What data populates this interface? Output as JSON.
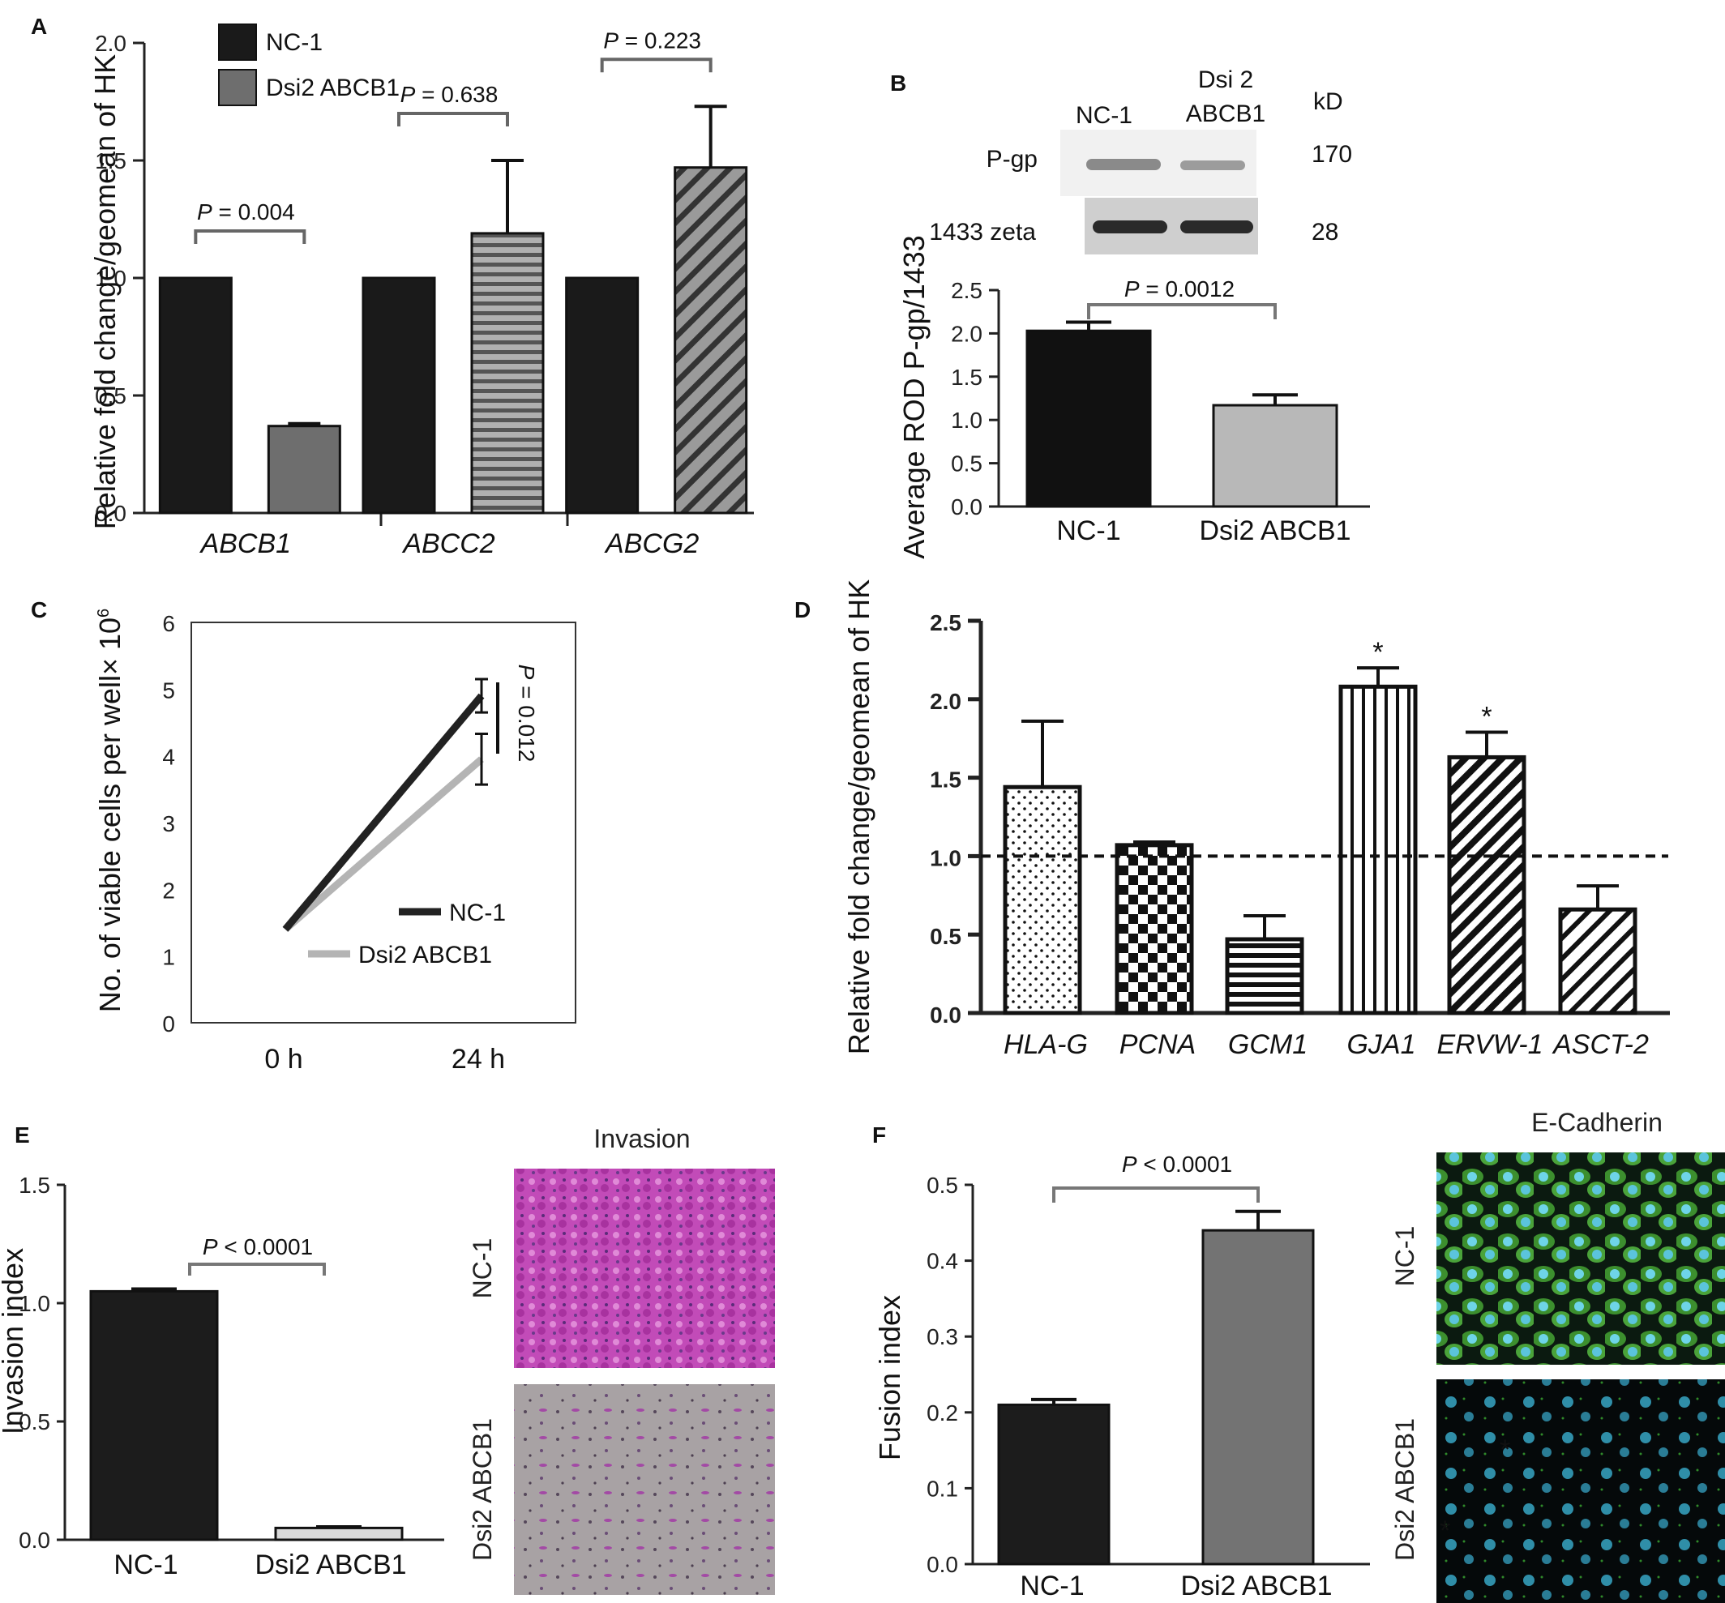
{
  "chart_data": [
    {
      "panel": "A",
      "type": "bar",
      "categories": [
        "ABCB1",
        "ABCC2",
        "ABCG2"
      ],
      "series": [
        {
          "name": "NC-1",
          "values": [
            1.0,
            1.0,
            1.0
          ],
          "errors": [
            0,
            0,
            0
          ],
          "color": "#1a1a1a"
        },
        {
          "name": "Dsi2 ABCB1",
          "values": [
            0.37,
            1.19,
            1.47
          ],
          "errors": [
            0.01,
            0.31,
            0.26
          ],
          "color": "#6e6e6e"
        }
      ],
      "pvalues": [
        "P = 0.004",
        "P = 0.638",
        "P = 0.223"
      ],
      "ylabel": "Relative fold change/geomean of HK",
      "ylim": [
        0,
        2.0
      ],
      "yticks": [
        "0.0",
        "0.5",
        "1.0",
        "1.5",
        "2.0"
      ],
      "legend_position": "top-left"
    },
    {
      "panel": "B",
      "type": "bar",
      "categories": [
        "NC-1",
        "Dsi2 ABCB1"
      ],
      "values": [
        2.03,
        1.17
      ],
      "errors": [
        0.1,
        0.12
      ],
      "colors": [
        "#111111",
        "#b8b8b8"
      ],
      "pvalue": "P = 0.0012",
      "ylabel": "Average ROD P-gp/1433",
      "ylim": [
        0,
        2.5
      ],
      "yticks": [
        "0.0",
        "0.5",
        "1.0",
        "1.5",
        "2.0",
        "2.5"
      ],
      "blot": {
        "lanes": [
          "NC-1",
          "Dsi 2",
          "ABCB1"
        ],
        "unit": "kD",
        "rows": [
          {
            "label": "P-gp",
            "kd": "170"
          },
          {
            "label": "1433 zeta",
            "kd": "28"
          }
        ]
      }
    },
    {
      "panel": "C",
      "type": "line",
      "x": [
        "0 h",
        "24 h"
      ],
      "series": [
        {
          "name": "NC-1",
          "values": [
            1.4,
            4.9
          ],
          "errors": [
            0,
            0.25
          ],
          "color": "#222222"
        },
        {
          "name": "Dsi2 ABCB1",
          "values": [
            1.4,
            3.95
          ],
          "errors": [
            0,
            0.38
          ],
          "color": "#b4b4b4"
        }
      ],
      "pvalue": "P = 0.012",
      "ylabel": "No. of viable cells per well× 10",
      "ylabel_exp": "6",
      "ylim": [
        0,
        6
      ],
      "yticks": [
        "0",
        "1",
        "2",
        "3",
        "4",
        "5",
        "6"
      ],
      "legend_position": "bottom-right"
    },
    {
      "panel": "D",
      "type": "bar",
      "categories": [
        "HLA-G",
        "PCNA",
        "GCM1",
        "GJA1",
        "ERVW-1",
        "ASCT-2"
      ],
      "values": [
        1.44,
        1.07,
        0.47,
        2.08,
        1.63,
        0.66
      ],
      "errors": [
        0.42,
        0.02,
        0.15,
        0.12,
        0.16,
        0.15
      ],
      "patterns": [
        "dots",
        "checker",
        "hstripes",
        "vstripes",
        "diag",
        "diag2"
      ],
      "significance": [
        "",
        "",
        "",
        "*",
        "*",
        ""
      ],
      "ylabel": "Relative fold change/geomean of HK",
      "ylim": [
        0,
        2.5
      ],
      "yticks": [
        "0.0",
        "0.5",
        "1.0",
        "1.5",
        "2.0",
        "2.5"
      ],
      "reference_line": 1.0
    },
    {
      "panel": "E",
      "type": "bar",
      "categories": [
        "NC-1",
        "Dsi2 ABCB1"
      ],
      "values": [
        1.05,
        0.05
      ],
      "errors": [
        0.01,
        0.005
      ],
      "colors": [
        "#1c1c1c",
        "#d8d8d8"
      ],
      "pvalue": "P < 0.0001",
      "ylabel": "Invasion index",
      "ylim": [
        0,
        1.5
      ],
      "yticks": [
        "0.0",
        "0.5",
        "1.0",
        "1.5"
      ],
      "images": {
        "title": "Invasion",
        "labels": [
          "NC-1",
          "Dsi2 ABCB1"
        ]
      }
    },
    {
      "panel": "F",
      "type": "bar",
      "categories": [
        "NC-1",
        "Dsi2 ABCB1"
      ],
      "values": [
        0.21,
        0.44
      ],
      "errors": [
        0.007,
        0.025
      ],
      "colors": [
        "#1c1c1c",
        "#737373"
      ],
      "pvalue": "P < 0.0001",
      "ylabel": "Fusion index",
      "ylim": [
        0,
        0.5
      ],
      "yticks": [
        "0.0",
        "0.1",
        "0.2",
        "0.3",
        "0.4",
        "0.5"
      ],
      "images": {
        "title": "E-Cadherin",
        "labels": [
          "NC-1",
          "Dsi2 ABCB1"
        ]
      }
    }
  ],
  "panel_labels": [
    "A",
    "B",
    "C",
    "D",
    "E",
    "F"
  ]
}
